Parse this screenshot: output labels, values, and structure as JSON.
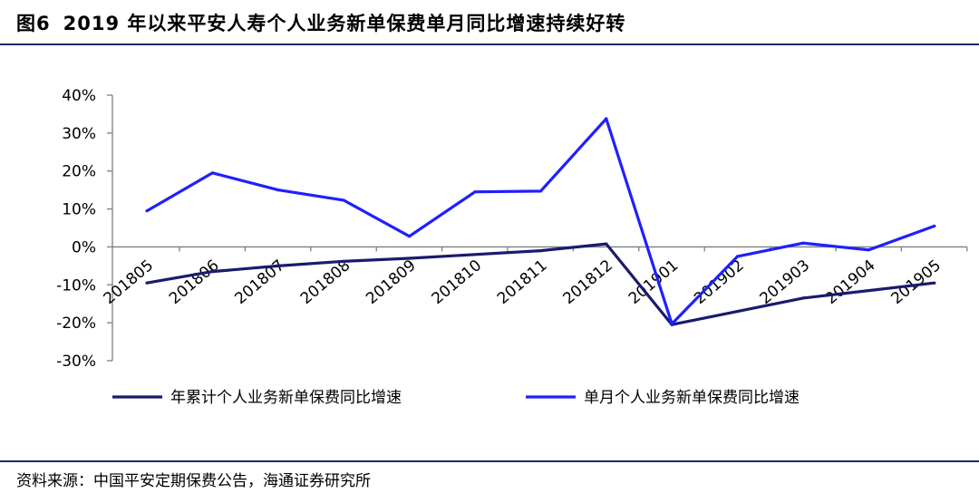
{
  "figure": {
    "label": "图6",
    "title": "2019 年以来平安人寿个人业务新单保费单月同比增速持续好转",
    "source": "资料来源：中国平安定期保费公告，海通证券研究所"
  },
  "chart_data": {
    "type": "line",
    "categories": [
      "201805",
      "201806",
      "201807",
      "201808",
      "201809",
      "201810",
      "201811",
      "201812",
      "201901",
      "201902",
      "201903",
      "201904",
      "201905"
    ],
    "series": [
      {
        "name": "年累计个人业务新单保费同比增速",
        "color": "#1a1a6e",
        "values": [
          -9.5,
          -6.5,
          -5,
          -3.8,
          -3,
          -2,
          -1,
          0.8,
          -20.5,
          -17,
          -13.5,
          -11.5,
          -9.5
        ]
      },
      {
        "name": "单月个人业务新单保费同比增速",
        "color": "#1f1fff",
        "values": [
          9.5,
          19.5,
          15,
          12.3,
          2.8,
          14.5,
          14.7,
          33.8,
          -20.3,
          -2.5,
          1,
          -0.8,
          5.5
        ]
      }
    ],
    "ylim": [
      -30,
      40
    ],
    "yticks": [
      "40%",
      "30%",
      "20%",
      "10%",
      "0%",
      "-10%",
      "-20%",
      "-30%"
    ],
    "ytick_values": [
      40,
      30,
      20,
      10,
      0,
      -10,
      -20,
      -30
    ],
    "legend_position": "bottom",
    "grid": false
  }
}
